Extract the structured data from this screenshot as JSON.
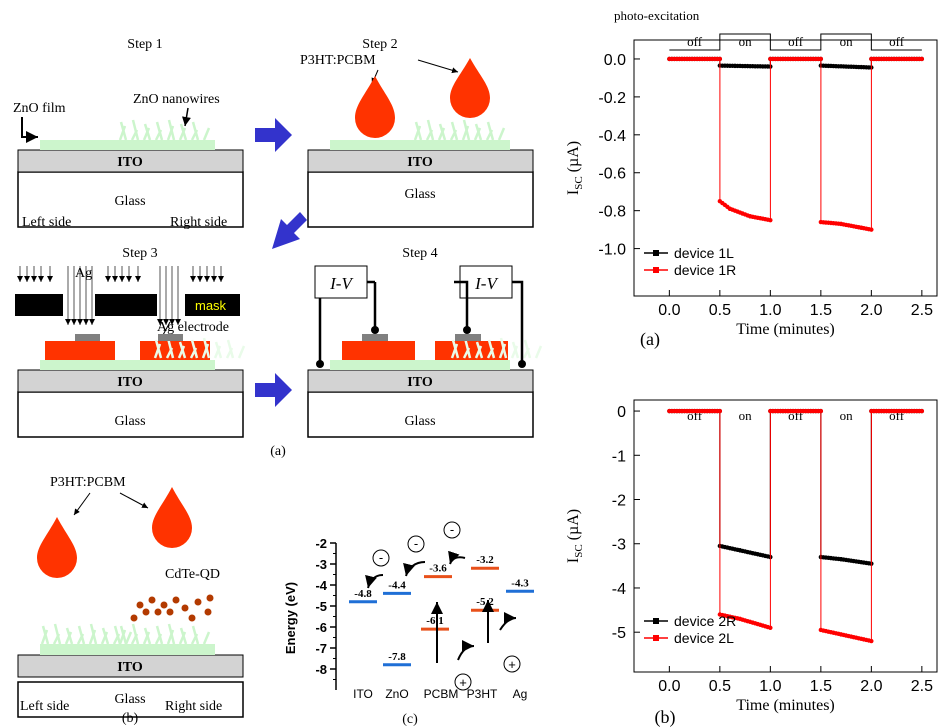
{
  "step_labels": [
    "Step 1",
    "Step 2",
    "Step 3",
    "Step 4"
  ],
  "layers": {
    "ito": "ITO",
    "glass": "Glass"
  },
  "labels": {
    "zno_film": "ZnO film",
    "zno_nanowires": "ZnO nanowires",
    "left_side": "Left side",
    "right_side": "Right side",
    "p3ht_pcbm": "P3HT:PCBM",
    "ag": "Ag",
    "mask": "mask",
    "ag_electrode": "Ag electrode",
    "iv": "I-V",
    "cdte_qd": "CdTe-QD"
  },
  "captions": {
    "a_left": "(a)",
    "b_left": "(b)",
    "c": "(c)",
    "a_right": "(a)",
    "b_right": "(b)"
  },
  "colors": {
    "ito": "#d3d3d3",
    "zno": "#ccf5cc",
    "p3ht": "#ff3300",
    "arrow_blue": "#3333cc",
    "electrode": "#808080",
    "qd": "#b33a00",
    "ito_level": "#1f6fd6",
    "ag_level": "#1f6fd6",
    "zno_level": "#1f6fd6",
    "pcbm_level": "#e8501a",
    "p3ht_level": "#e8501a",
    "series_black": "#000000",
    "series_red": "#ff0000"
  },
  "energy_diagram": {
    "ylabel": "Energy (eV)",
    "y_ticks": [
      "-2",
      "-3",
      "-4",
      "-5",
      "-6",
      "-7",
      "-8"
    ],
    "x_labels": [
      "ITO",
      "ZnO",
      "PCBM",
      "P3HT",
      "Ag"
    ],
    "levels": [
      {
        "material": "ITO",
        "value": -4.8,
        "label": "-4.8",
        "kind": "blue"
      },
      {
        "material": "ZnO",
        "value": -4.4,
        "label": "-4.4",
        "kind": "blue"
      },
      {
        "material": "ZnO",
        "value": -7.8,
        "label": "-7.8",
        "kind": "blue"
      },
      {
        "material": "PCBM",
        "value": -3.6,
        "label": "-3.6",
        "kind": "red"
      },
      {
        "material": "PCBM",
        "value": -6.1,
        "label": "-6.1",
        "kind": "red"
      },
      {
        "material": "P3HT",
        "value": -3.2,
        "label": "-3.2",
        "kind": "red"
      },
      {
        "material": "P3HT",
        "value": -5.2,
        "label": "-5.2",
        "kind": "red"
      },
      {
        "material": "Ag",
        "value": -4.3,
        "label": "-4.3",
        "kind": "blue"
      }
    ],
    "electron_symbol": "-",
    "hole_symbol": "+"
  },
  "chart_data": [
    {
      "type": "line",
      "xlabel": "Time (minutes)",
      "ylabel_main": "I",
      "ylabel_sub": "SC",
      "ylabel_unit": " (µA)",
      "xlim": [
        -0.35,
        2.65
      ],
      "ylim": [
        -1.25,
        0.1
      ],
      "x_ticks": [
        0.0,
        0.5,
        1.0,
        1.5,
        2.0,
        2.5
      ],
      "x_tick_labels": [
        "0.0",
        "0.5",
        "1.0",
        "1.5",
        "2.0",
        "2.5"
      ],
      "y_ticks": [
        0.0,
        -0.2,
        -0.4,
        -0.6,
        -0.8,
        -1.0
      ],
      "y_tick_labels": [
        "0.0",
        "-0.2",
        "-0.4",
        "-0.6",
        "-0.8",
        "-1.0"
      ],
      "excitation_title": "photo-excitation",
      "excitation_states": [
        "off",
        "on",
        "off",
        "on",
        "off"
      ],
      "series": [
        {
          "name": "device 1L",
          "color": "#000000",
          "segments": [
            [
              [
                0.0,
                0.0
              ],
              [
                0.5,
                0.0
              ]
            ],
            [
              [
                0.5,
                -0.035
              ],
              [
                1.0,
                -0.04
              ]
            ],
            [
              [
                1.0,
                0.0
              ],
              [
                1.5,
                0.0
              ]
            ],
            [
              [
                1.5,
                -0.035
              ],
              [
                2.0,
                -0.045
              ]
            ],
            [
              [
                2.0,
                0.0
              ],
              [
                2.5,
                0.0
              ]
            ]
          ]
        },
        {
          "name": "device 1R",
          "color": "#ff0000",
          "segments": [
            [
              [
                0.0,
                0.0
              ],
              [
                0.5,
                0.0
              ]
            ],
            [
              [
                0.5,
                -0.75
              ],
              [
                0.6,
                -0.79
              ],
              [
                0.8,
                -0.83
              ],
              [
                1.0,
                -0.85
              ]
            ],
            [
              [
                1.0,
                0.0
              ],
              [
                1.5,
                0.0
              ]
            ],
            [
              [
                1.5,
                -0.86
              ],
              [
                1.7,
                -0.87
              ],
              [
                1.9,
                -0.89
              ],
              [
                2.0,
                -0.9
              ]
            ],
            [
              [
                2.0,
                0.0
              ],
              [
                2.5,
                0.0
              ]
            ]
          ]
        }
      ],
      "legend": [
        "device 1L",
        "device 1R"
      ]
    },
    {
      "type": "line",
      "xlabel": "Time (minutes)",
      "ylabel_main": "I",
      "ylabel_sub": "SC",
      "ylabel_unit": " (µA)",
      "xlim": [
        -0.35,
        2.65
      ],
      "ylim": [
        -5.9,
        0.25
      ],
      "x_ticks": [
        0.0,
        0.5,
        1.0,
        1.5,
        2.0,
        2.5
      ],
      "x_tick_labels": [
        "0.0",
        "0.5",
        "1.0",
        "1.5",
        "2.0",
        "2.5"
      ],
      "y_ticks": [
        0,
        -1,
        -2,
        -3,
        -4,
        -5
      ],
      "y_tick_labels": [
        "0",
        "-1",
        "-2",
        "-3",
        "-4",
        "-5"
      ],
      "excitation_states": [
        "off",
        "on",
        "off",
        "on",
        "off"
      ],
      "series": [
        {
          "name": "device 2R",
          "color": "#000000",
          "segments": [
            [
              [
                0.0,
                0.0
              ],
              [
                0.5,
                0.0
              ]
            ],
            [
              [
                0.5,
                -3.05
              ],
              [
                0.7,
                -3.15
              ],
              [
                1.0,
                -3.3
              ]
            ],
            [
              [
                1.0,
                0.0
              ],
              [
                1.5,
                0.0
              ]
            ],
            [
              [
                1.5,
                -3.3
              ],
              [
                1.7,
                -3.35
              ],
              [
                2.0,
                -3.45
              ]
            ],
            [
              [
                2.0,
                0.0
              ],
              [
                2.5,
                0.0
              ]
            ]
          ]
        },
        {
          "name": "device 2L",
          "color": "#ff0000",
          "segments": [
            [
              [
                0.0,
                0.0
              ],
              [
                0.5,
                0.0
              ]
            ],
            [
              [
                0.5,
                -4.6
              ],
              [
                0.7,
                -4.7
              ],
              [
                1.0,
                -4.9
              ]
            ],
            [
              [
                1.0,
                0.0
              ],
              [
                1.5,
                0.0
              ]
            ],
            [
              [
                1.5,
                -4.95
              ],
              [
                1.7,
                -5.05
              ],
              [
                2.0,
                -5.2
              ]
            ],
            [
              [
                2.0,
                0.0
              ],
              [
                2.5,
                0.0
              ]
            ]
          ]
        }
      ],
      "legend": [
        "device 2R",
        "device 2L"
      ]
    }
  ]
}
